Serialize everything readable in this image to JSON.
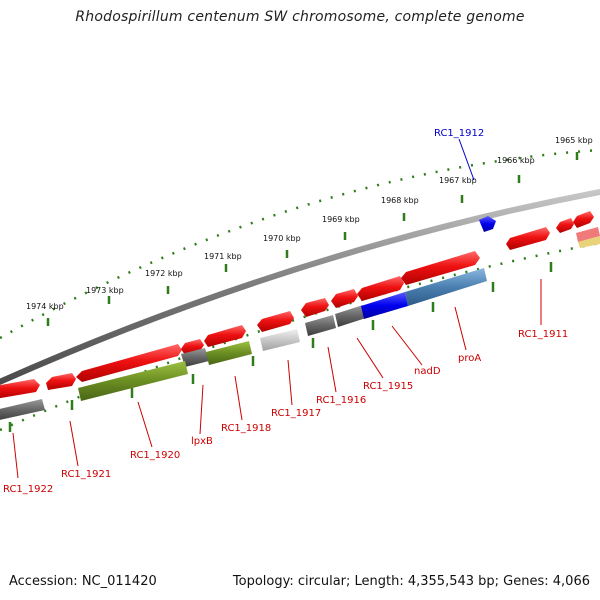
{
  "title": "Rhodospirillum centenum SW chromosome, complete genome",
  "footer": {
    "accession": "Accession: NC_011420",
    "summary": "Topology: circular; Length: 4,355,543 bp; Genes: 4,066"
  },
  "scale_labels": [
    "1974 kbp",
    "1973 kbp",
    "1972 kbp",
    "1971 kbp",
    "1970 kbp",
    "1969 kbp",
    "1968 kbp",
    "1967 kbp",
    "1966 kbp",
    "1965 kbp"
  ],
  "gene_labels": [
    "RC1_1922",
    "RC1_1921",
    "RC1_1920",
    "lpxB",
    "RC1_1918",
    "RC1_1917",
    "RC1_1916",
    "RC1_1915",
    "nadD",
    "proA",
    "RC1_1911",
    "RC1_1912"
  ],
  "colors": {
    "gene_red": "#ee1111",
    "gene_blue": "#0000ee",
    "gene_olive": "#6b8e23",
    "gene_steel": "#4a7fb0",
    "gene_grey": "#666666",
    "gene_lightgrey": "#c8c8c8",
    "backbone": "#7a7a7a",
    "scale_dots": "#2e7d1a",
    "label_red": "#cc0000",
    "label_blue": "#0000cc"
  }
}
